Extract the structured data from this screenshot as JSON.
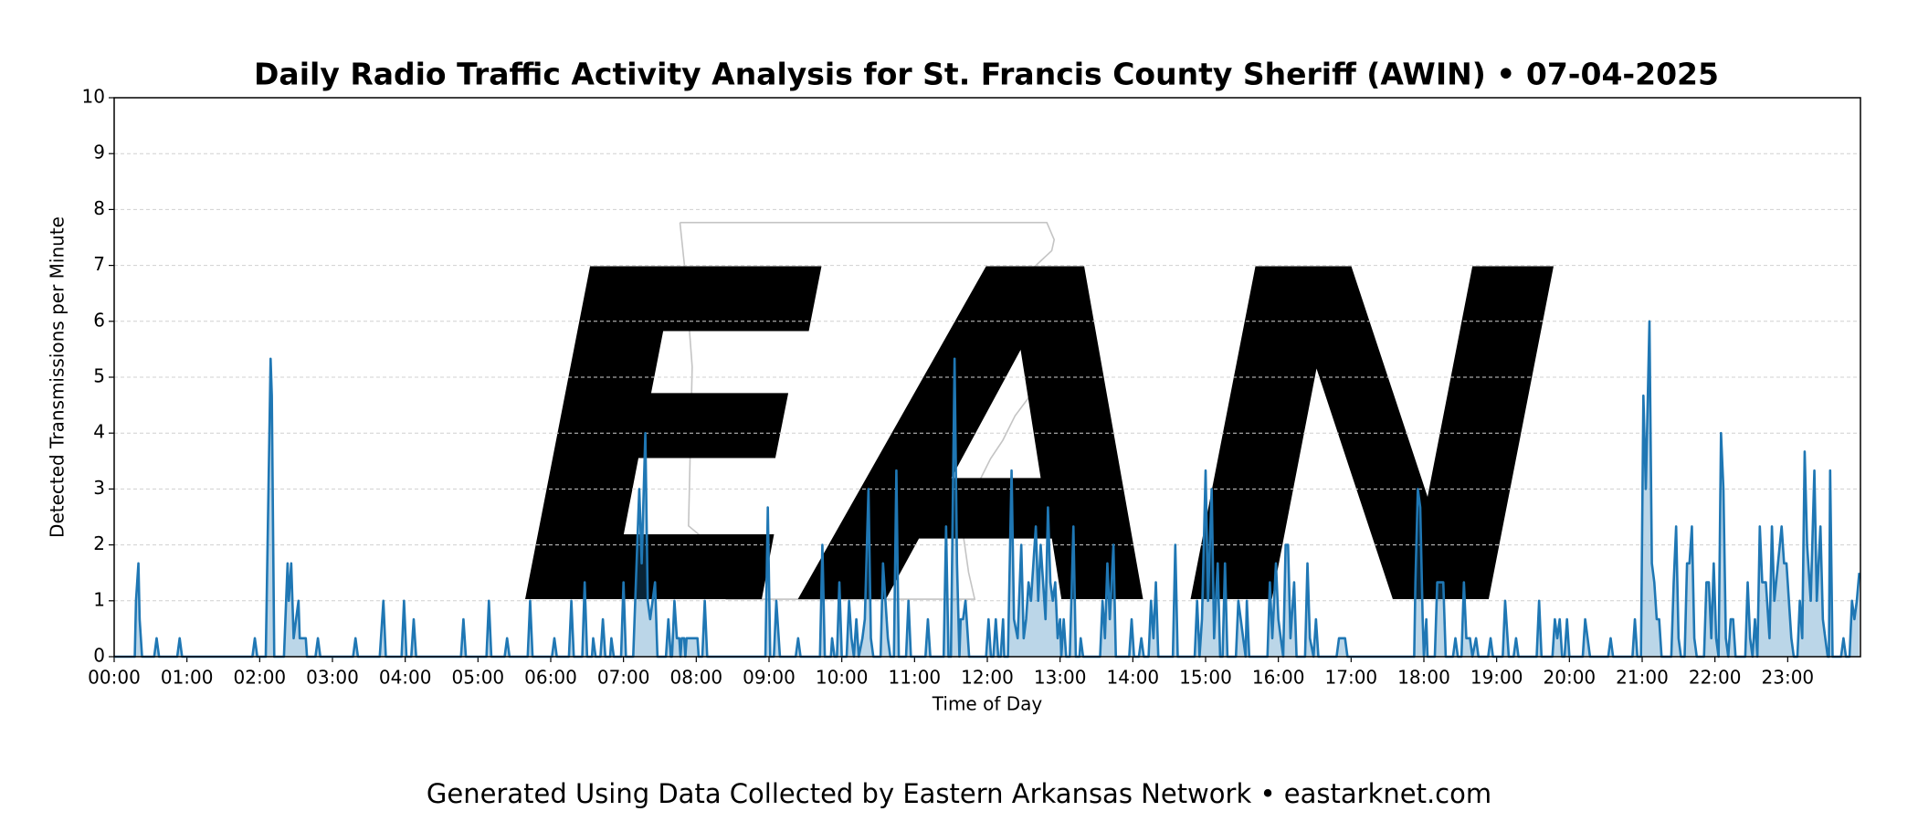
{
  "chart_data": {
    "type": "line",
    "title": "Daily Radio Traffic Activity Analysis for St. Francis County Sheriff (AWIN) • 07-04-2025",
    "x_label": "Time of Day",
    "y_label": "Detected Transmissions per Minute",
    "footer": "Generated Using Data Collected by Eastern Arkansas Network • eastarknet.com",
    "watermark": "EAN",
    "color": "#1f77b4",
    "grid": true,
    "xlim": [
      0,
      1440
    ],
    "ylim": [
      0,
      10
    ],
    "yticks": [
      0,
      1,
      2,
      3,
      4,
      5,
      6,
      7,
      8,
      9,
      10
    ],
    "xticks": [
      {
        "value": 0,
        "label": "00:00"
      },
      {
        "value": 60,
        "label": "01:00"
      },
      {
        "value": 120,
        "label": "02:00"
      },
      {
        "value": 180,
        "label": "03:00"
      },
      {
        "value": 240,
        "label": "04:00"
      },
      {
        "value": 300,
        "label": "05:00"
      },
      {
        "value": 360,
        "label": "06:00"
      },
      {
        "value": 420,
        "label": "07:00"
      },
      {
        "value": 480,
        "label": "08:00"
      },
      {
        "value": 540,
        "label": "09:00"
      },
      {
        "value": 600,
        "label": "10:00"
      },
      {
        "value": 660,
        "label": "11:00"
      },
      {
        "value": 720,
        "label": "12:00"
      },
      {
        "value": 780,
        "label": "13:00"
      },
      {
        "value": 840,
        "label": "14:00"
      },
      {
        "value": 900,
        "label": "15:00"
      },
      {
        "value": 960,
        "label": "16:00"
      },
      {
        "value": 1020,
        "label": "17:00"
      },
      {
        "value": 1080,
        "label": "18:00"
      },
      {
        "value": 1140,
        "label": "19:00"
      },
      {
        "value": 1200,
        "label": "20:00"
      },
      {
        "value": 1260,
        "label": "21:00"
      },
      {
        "value": 1320,
        "label": "22:00"
      },
      {
        "value": 1380,
        "label": "23:00"
      }
    ],
    "x": [
      0,
      17,
      18,
      20,
      21,
      23,
      33,
      35,
      37,
      52,
      54,
      56,
      114,
      116,
      118,
      125,
      127,
      129,
      130,
      132,
      140,
      143,
      144,
      146,
      148,
      150,
      152,
      153,
      158,
      159,
      166,
      168,
      170,
      197,
      199,
      201,
      219,
      222,
      224,
      237,
      239,
      241,
      245,
      247,
      249,
      286,
      288,
      290,
      307,
      309,
      311,
      322,
      324,
      326,
      341,
      343,
      345,
      361,
      363,
      365,
      375,
      377,
      379,
      386,
      388,
      390,
      394,
      395,
      397,
      401,
      403,
      405,
      409,
      410,
      412,
      418,
      420,
      422,
      428,
      433,
      435,
      438,
      440,
      442,
      446,
      448,
      455,
      457,
      459,
      460,
      462,
      464,
      466,
      467,
      468,
      470,
      471,
      472,
      481,
      482,
      485,
      487,
      489,
      537,
      539,
      541,
      544,
      546,
      548,
      549,
      562,
      564,
      566,
      582,
      584,
      586,
      591,
      592,
      594,
      596,
      598,
      600,
      604,
      606,
      608,
      610,
      612,
      614,
      617,
      619,
      622,
      624,
      626,
      632,
      634,
      636,
      638,
      640,
      643,
      645,
      647,
      653,
      655,
      657,
      669,
      671,
      673,
      684,
      686,
      688,
      690,
      693,
      695,
      697,
      698,
      700,
      702,
      703,
      705,
      706,
      719,
      721,
      723,
      725,
      727,
      729,
      731,
      733,
      734,
      737,
      740,
      742,
      745,
      748,
      750,
      752,
      754,
      756,
      758,
      760,
      762,
      764,
      766,
      768,
      770,
      772,
      774,
      776,
      778,
      780,
      781,
      783,
      785,
      788,
      791,
      793,
      796,
      797,
      799,
      813,
      815,
      817,
      819,
      821,
      824,
      826,
      837,
      839,
      841,
      845,
      847,
      849,
      853,
      855,
      857,
      859,
      861,
      873,
      875,
      877,
      891,
      893,
      895,
      897,
      900,
      902,
      905,
      907,
      910,
      912,
      914,
      916,
      918,
      925,
      927,
      929,
      931,
      933,
      934,
      936,
      951,
      953,
      955,
      958,
      960,
      962,
      964,
      966,
      968,
      970,
      973,
      975,
      982,
      984,
      986,
      989,
      991,
      993,
      1008,
      1010,
      1015,
      1017,
      1072,
      1073,
      1075,
      1077,
      1079,
      1080,
      1082,
      1083,
      1089,
      1091,
      1096,
      1098,
      1104,
      1106,
      1108,
      1111,
      1113,
      1115,
      1118,
      1120,
      1123,
      1125,
      1133,
      1135,
      1137,
      1145,
      1147,
      1149,
      1150,
      1154,
      1156,
      1158,
      1173,
      1175,
      1177,
      1186,
      1188,
      1190,
      1192,
      1194,
      1196,
      1198,
      1200,
      1211,
      1213,
      1215,
      1217,
      1232,
      1234,
      1236,
      1252,
      1254,
      1256,
      1259,
      1261,
      1263,
      1266,
      1268,
      1270,
      1272,
      1274,
      1276,
      1284,
      1286,
      1288,
      1290,
      1292,
      1295,
      1297,
      1299,
      1301,
      1303,
      1305,
      1311,
      1313,
      1315,
      1317,
      1319,
      1321,
      1323,
      1325,
      1327,
      1329,
      1331,
      1333,
      1335,
      1337,
      1345,
      1347,
      1349,
      1351,
      1353,
      1355,
      1357,
      1359,
      1362,
      1365,
      1367,
      1369,
      1372,
      1375,
      1377,
      1379,
      1381,
      1383,
      1385,
      1388,
      1390,
      1392,
      1394,
      1396,
      1399,
      1402,
      1404,
      1407,
      1409,
      1411,
      1413,
      1414,
      1415,
      1417,
      1424,
      1426,
      1428,
      1431,
      1433,
      1435,
      1437,
      1439
    ],
    "values": [
      0,
      0,
      1,
      1.67,
      0.67,
      0,
      0,
      0.33,
      0,
      0,
      0.33,
      0,
      0,
      0.33,
      0,
      0,
      2.67,
      5.33,
      4.67,
      0,
      0,
      1.67,
      1,
      1.67,
      0.33,
      0.67,
      1,
      0.33,
      0.33,
      0,
      0,
      0.33,
      0,
      0,
      0.33,
      0,
      0,
      1,
      0,
      0,
      1,
      0,
      0,
      0.67,
      0,
      0,
      0.67,
      0,
      0,
      1,
      0,
      0,
      0.33,
      0,
      0,
      1,
      0,
      0,
      0.33,
      0,
      0,
      1,
      0,
      0,
      1.33,
      0,
      0,
      0.33,
      0,
      0,
      0.67,
      0,
      0,
      0.33,
      0,
      0,
      1.33,
      0,
      0,
      3,
      1.67,
      4,
      1,
      0.67,
      1.33,
      0,
      0,
      0.67,
      0,
      0,
      1,
      0.33,
      0.33,
      0,
      0.33,
      0.33,
      0,
      0.33,
      0.33,
      0,
      0,
      1,
      0,
      0,
      2.67,
      0,
      0,
      1,
      0.33,
      0,
      0,
      0.33,
      0,
      0,
      2,
      0,
      0,
      0.33,
      0,
      0,
      1.33,
      0,
      0,
      1,
      0.33,
      0,
      0.67,
      0,
      0.33,
      0.67,
      3,
      0.33,
      0,
      0,
      1.67,
      1,
      0.33,
      0,
      0,
      3.33,
      0,
      0,
      1,
      0,
      0,
      0.67,
      0,
      0,
      2.33,
      0,
      0,
      5.33,
      1.67,
      0,
      0.67,
      0.67,
      1,
      0.67,
      0,
      0,
      0,
      0.67,
      0,
      0,
      0.67,
      0,
      0,
      0.67,
      0,
      0,
      3.33,
      0.67,
      0.33,
      2,
      0.33,
      0.67,
      1.33,
      1,
      1.67,
      2.33,
      1,
      2,
      1.33,
      0.67,
      2.67,
      1.33,
      1,
      1.33,
      0.33,
      0.67,
      0,
      0.67,
      0,
      0,
      2.33,
      0,
      0,
      0.33,
      0,
      0,
      1,
      0.33,
      1.67,
      0.67,
      2,
      0,
      0,
      0.67,
      0,
      0,
      0.33,
      0,
      0,
      1,
      0.33,
      1.33,
      0,
      0,
      2,
      0,
      0,
      1,
      0,
      0.67,
      3.33,
      1,
      3,
      0.33,
      1.67,
      0,
      0,
      1.67,
      0,
      0,
      1,
      0.67,
      0.33,
      0,
      1,
      0,
      0,
      1.33,
      0.33,
      1.67,
      0.67,
      0.33,
      0,
      2,
      2,
      0.33,
      1.33,
      0,
      0,
      1.67,
      0.33,
      0,
      0.67,
      0,
      0,
      0.33,
      0.33,
      0,
      0,
      1.33,
      3,
      2.67,
      0.67,
      0,
      0.67,
      0,
      0,
      1.33,
      1.33,
      0,
      0,
      0.33,
      0,
      0,
      1.33,
      0.33,
      0.33,
      0,
      0.33,
      0,
      0,
      0.33,
      0,
      0,
      1,
      0.33,
      0,
      0,
      0.33,
      0,
      0,
      1,
      0,
      0,
      0.67,
      0.33,
      0.67,
      0,
      0,
      0.67,
      0,
      0,
      0.67,
      0.33,
      0,
      0,
      0.33,
      0,
      0,
      0.67,
      0,
      0,
      4.67,
      3,
      6,
      1.67,
      1.33,
      0.67,
      0.67,
      0,
      0,
      1.33,
      2.33,
      0.33,
      0,
      0,
      1.67,
      1.67,
      2.33,
      0.33,
      0,
      0,
      1.33,
      1.33,
      0.33,
      1.67,
      0.33,
      0,
      4,
      3,
      0.33,
      0,
      0.67,
      0.67,
      0,
      0,
      1.33,
      0.33,
      0,
      0.67,
      0,
      2.33,
      1.33,
      1.33,
      0.33,
      2.33,
      1,
      1.67,
      2.33,
      1.67,
      1.67,
      1,
      0.33,
      0,
      0,
      1,
      0.33,
      3.67,
      2,
      1,
      3.33,
      1,
      2.33,
      0.67,
      0.33,
      0,
      0,
      3.33,
      0,
      0,
      0.33,
      0,
      0,
      1,
      0.67,
      1,
      1.5
    ]
  }
}
